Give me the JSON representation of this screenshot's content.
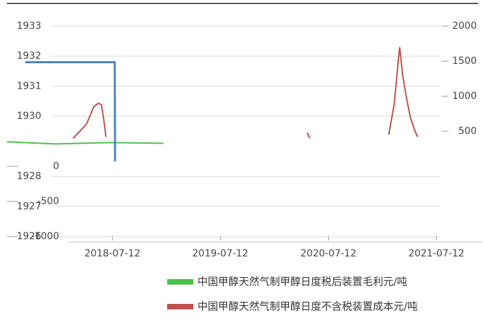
{
  "chart_data": {
    "type": "line",
    "xlim": [
      "2017-07-20",
      "2021-12-12"
    ],
    "xticks": [
      "2018-07-12",
      "2019-07-12",
      "2020-07-12",
      "2021-07-12"
    ],
    "ylim": [
      1926,
      1933
    ],
    "yticks": [
      1926,
      1927,
      1928,
      1930,
      1931,
      1932,
      1933
    ],
    "y2lim": [
      -1000,
      2000
    ],
    "y2ticks": [
      -1000,
      -500,
      0,
      500,
      1000,
      1500,
      2000
    ],
    "grid": true,
    "series": [
      {
        "name": "中国甲醇天然气制甲醇日度税后装置毛利元/吨",
        "color": "#4cc04c",
        "axis": "y2",
        "x": [
          "2017-07-20",
          "2018-01-01",
          "2018-07-01",
          "2019-01-01"
        ],
        "values": [
          350,
          320,
          340,
          330
        ]
      },
      {
        "name": "中国甲醇天然气制甲醇日度不含税装置成本元/吨",
        "color": "#c0504d",
        "axis": "y2",
        "x": [
          "2018-03-01",
          "2018-04-15",
          "2018-05-10",
          "2018-05-25",
          "2018-06-05",
          "2018-06-15",
          "2018-06-20",
          "2019-01-01",
          "2020-05-01",
          "2020-05-10",
          "2020-12-01",
          "2021-02-01",
          "2021-02-20",
          "2021-03-05",
          "2021-03-10",
          "2021-03-20",
          "2021-04-01",
          "2021-04-15",
          "2021-05-01",
          "2021-05-10"
        ],
        "values": [
          400,
          600,
          850,
          900,
          880,
          600,
          420,
          null,
          480,
          400,
          null,
          450,
          900,
          1500,
          1700,
          1300,
          1000,
          700,
          500,
          420
        ]
      },
      {
        "color": "#4f81bd",
        "axis": "y",
        "x": [
          "2017-09-20",
          "2018-07-20",
          "2018-07-21"
        ],
        "values": [
          1931.8,
          1931.8,
          1928.5
        ]
      }
    ]
  }
}
